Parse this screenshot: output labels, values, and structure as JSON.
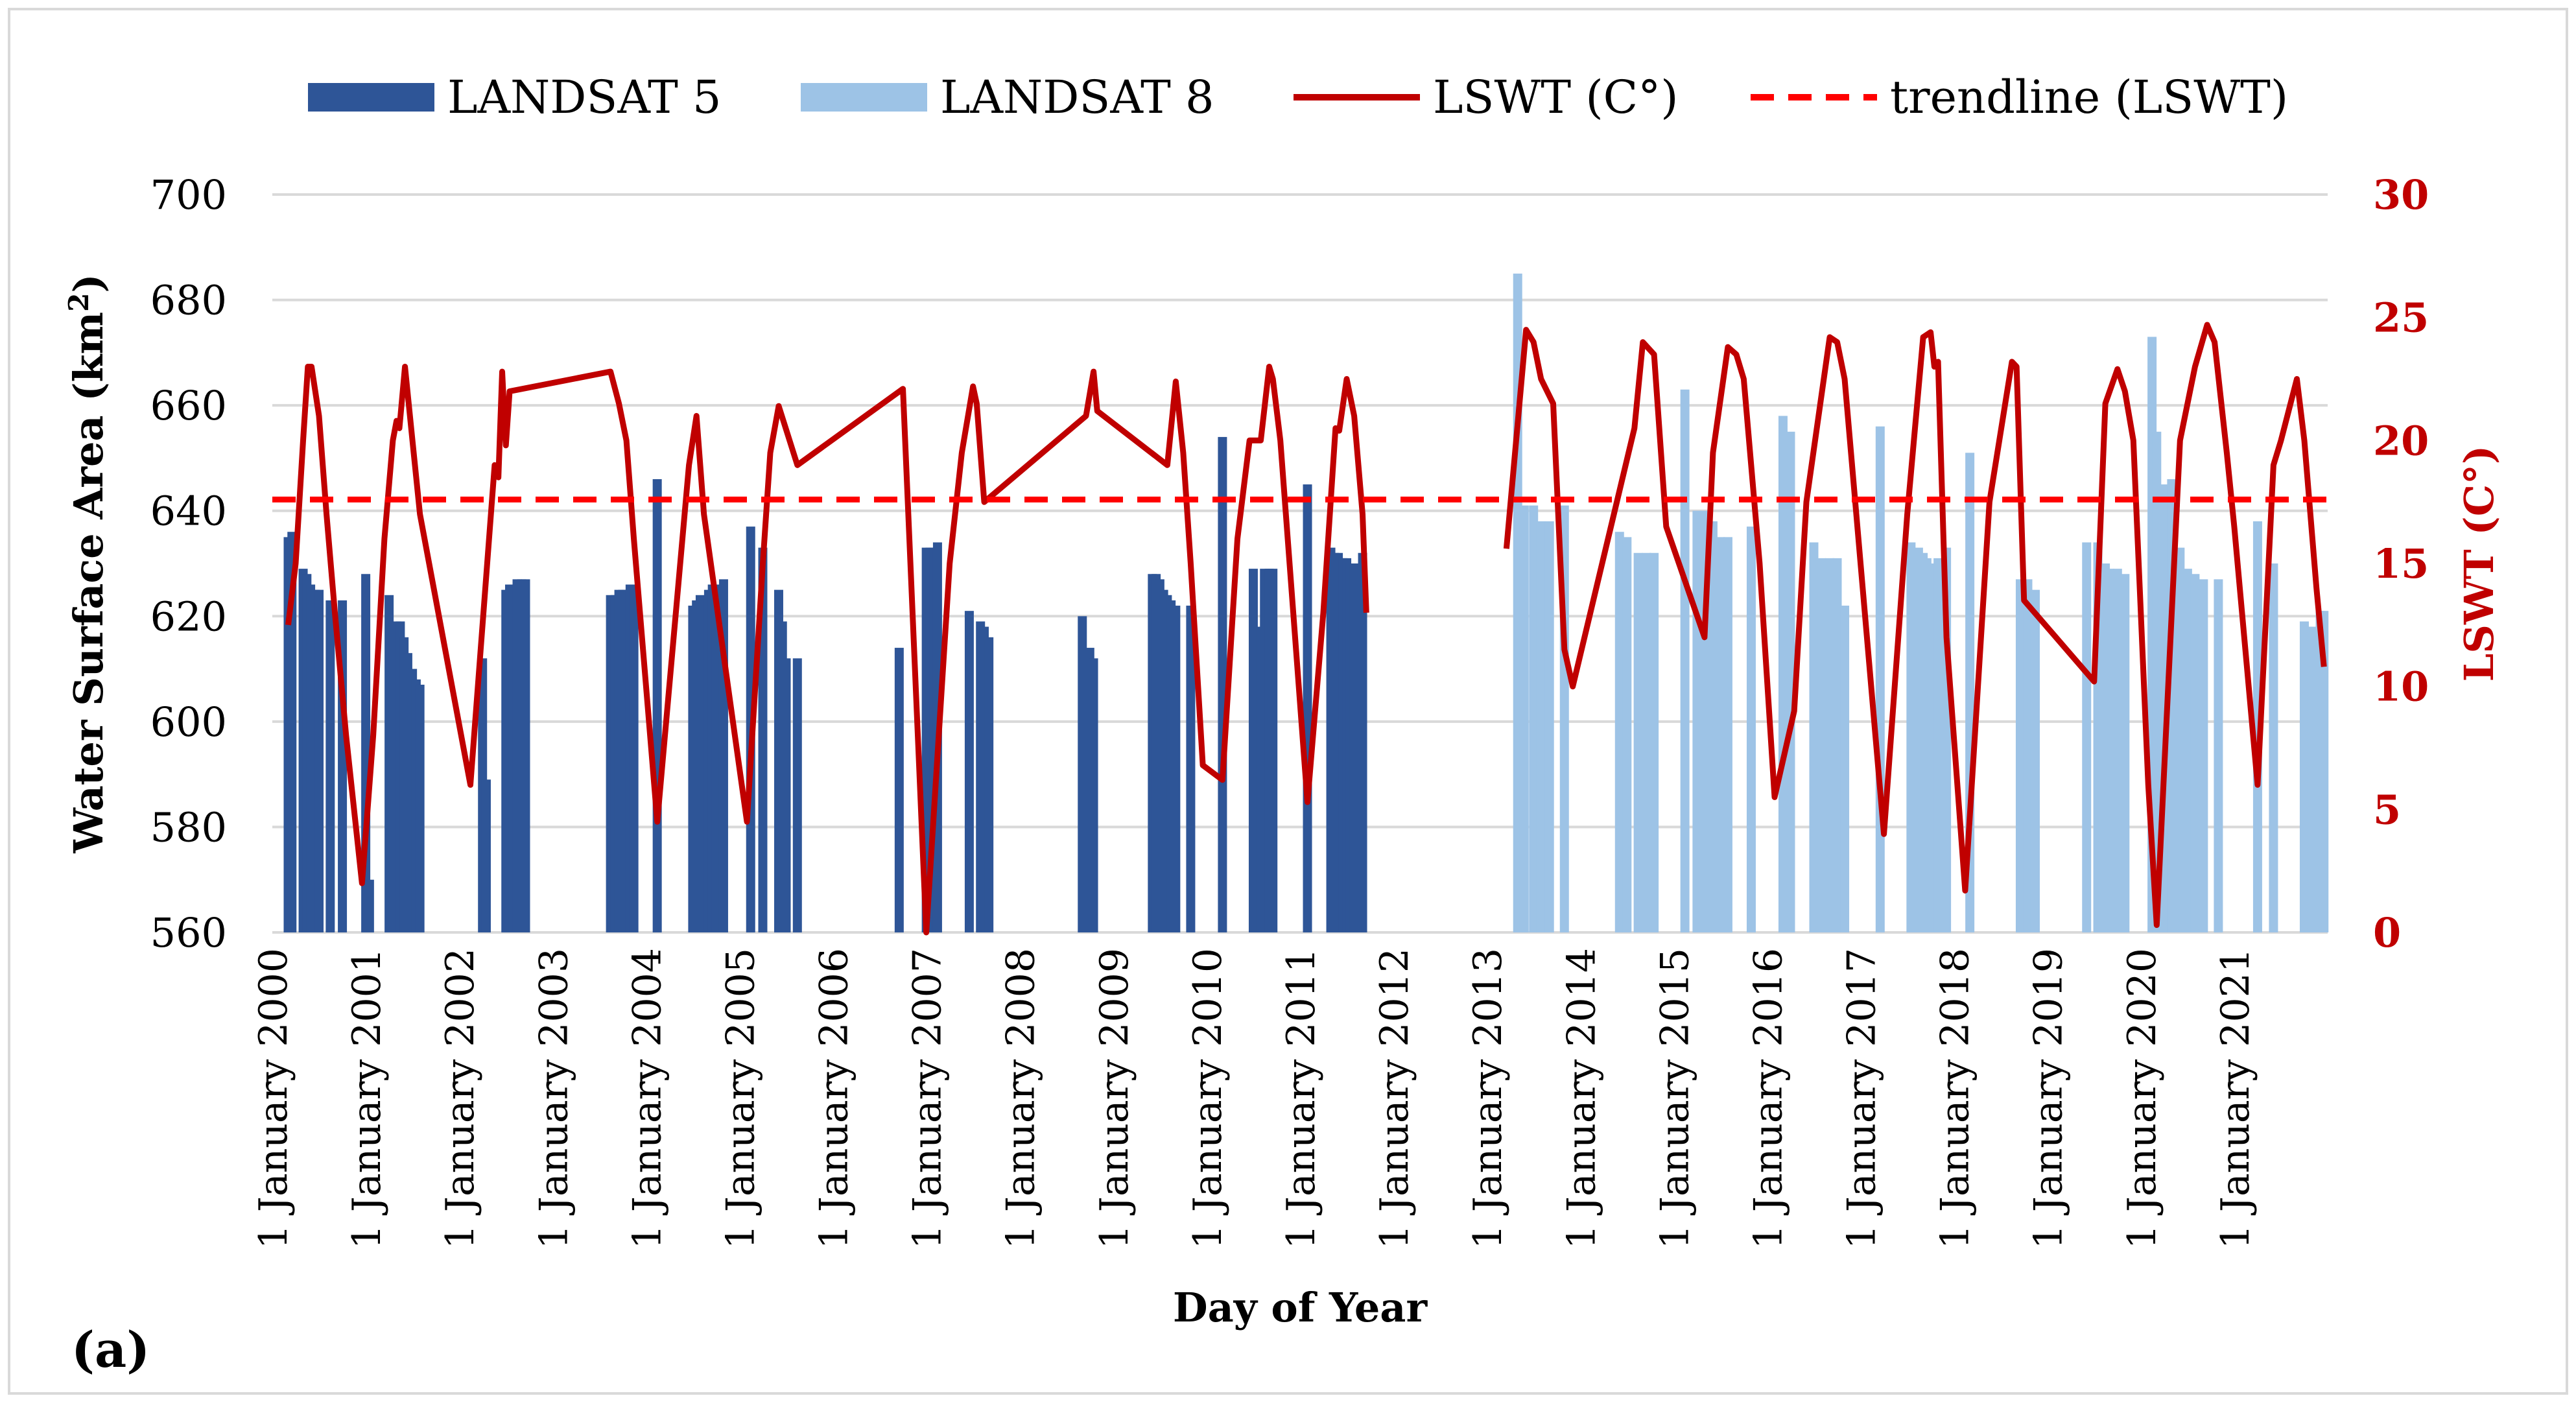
{
  "chart_data": {
    "type": "bar+line",
    "panel_label": "(a)",
    "xlabel": "Day of Year",
    "ylabel_left": "Water Surface Area (km",
    "ylabel_left_sup": "2",
    "ylabel_left_close": ")",
    "ylabel_right": "LSWT (C°)",
    "y_left": {
      "min": 560,
      "max": 700,
      "ticks": [
        560,
        580,
        600,
        620,
        640,
        660,
        680,
        700
      ]
    },
    "y_right": {
      "min": 0,
      "max": 30,
      "ticks": [
        0,
        5,
        10,
        15,
        20,
        25,
        30
      ]
    },
    "x_range": [
      2000.0,
      2022.0
    ],
    "x_ticks": [
      {
        "x": 2000,
        "label": "1 January 2000"
      },
      {
        "x": 2001,
        "label": "1 January 2001"
      },
      {
        "x": 2002,
        "label": "1 January 2002"
      },
      {
        "x": 2003,
        "label": "1 January 2003"
      },
      {
        "x": 2004,
        "label": "1 January 2004"
      },
      {
        "x": 2005,
        "label": "1 January 2005"
      },
      {
        "x": 2006,
        "label": "1 January 2006"
      },
      {
        "x": 2007,
        "label": "1 January 2007"
      },
      {
        "x": 2008,
        "label": "1 January 2008"
      },
      {
        "x": 2009,
        "label": "1 January 2009"
      },
      {
        "x": 2010,
        "label": "1 January 2010"
      },
      {
        "x": 2011,
        "label": "1 January 2011"
      },
      {
        "x": 2012,
        "label": "1 January 2012"
      },
      {
        "x": 2013,
        "label": "1 January 2013"
      },
      {
        "x": 2014,
        "label": "1 January 2014"
      },
      {
        "x": 2015,
        "label": "1 January 2015"
      },
      {
        "x": 2016,
        "label": "1 January 2016"
      },
      {
        "x": 2017,
        "label": "1 January 2017"
      },
      {
        "x": 2018,
        "label": "1 January 2018"
      },
      {
        "x": 2019,
        "label": "1 January 2019"
      },
      {
        "x": 2020,
        "label": "1 January 2020"
      },
      {
        "x": 2021,
        "label": "1 January 2021"
      }
    ],
    "legend": [
      {
        "name": "LANDSAT 5",
        "kind": "bar",
        "color": "#2E5597"
      },
      {
        "name": "LANDSAT 8",
        "kind": "bar",
        "color": "#9DC3E6"
      },
      {
        "name": "LSWT (C°)",
        "kind": "line",
        "color": "#C00000"
      },
      {
        "name": "trendline (LSWT)",
        "kind": "dashed",
        "color": "#FF0000"
      }
    ],
    "series": [
      {
        "name": "LANDSAT 5",
        "type": "bar",
        "color": "#2E5597",
        "points": [
          [
            2000.17,
            635
          ],
          [
            2000.21,
            636
          ],
          [
            2000.33,
            629
          ],
          [
            2000.37,
            628
          ],
          [
            2000.41,
            626
          ],
          [
            2000.46,
            625
          ],
          [
            2000.5,
            625
          ],
          [
            2000.62,
            623
          ],
          [
            2000.75,
            623
          ],
          [
            2001.0,
            628
          ],
          [
            2001.04,
            570
          ],
          [
            2001.25,
            624
          ],
          [
            2001.33,
            619
          ],
          [
            2001.37,
            619
          ],
          [
            2001.41,
            616
          ],
          [
            2001.45,
            613
          ],
          [
            2001.5,
            610
          ],
          [
            2001.54,
            608
          ],
          [
            2001.58,
            607
          ],
          [
            2002.25,
            612
          ],
          [
            2002.29,
            589
          ],
          [
            2002.5,
            625
          ],
          [
            2002.54,
            626
          ],
          [
            2002.58,
            626
          ],
          [
            2002.62,
            627
          ],
          [
            2002.67,
            627
          ],
          [
            2002.71,
            627
          ],
          [
            2003.62,
            624
          ],
          [
            2003.67,
            624
          ],
          [
            2003.71,
            625
          ],
          [
            2003.75,
            625
          ],
          [
            2003.79,
            625
          ],
          [
            2003.83,
            626
          ],
          [
            2003.87,
            626
          ],
          [
            2004.12,
            646
          ],
          [
            2004.5,
            622
          ],
          [
            2004.54,
            623
          ],
          [
            2004.58,
            624
          ],
          [
            2004.67,
            625
          ],
          [
            2004.71,
            626
          ],
          [
            2004.75,
            626
          ],
          [
            2004.83,
            627
          ],
          [
            2005.12,
            637
          ],
          [
            2005.25,
            633
          ],
          [
            2005.42,
            625
          ],
          [
            2005.46,
            619
          ],
          [
            2005.5,
            612
          ],
          [
            2005.62,
            612
          ],
          [
            2006.71,
            614
          ],
          [
            2007.0,
            633
          ],
          [
            2007.04,
            633
          ],
          [
            2007.08,
            633
          ],
          [
            2007.12,
            634
          ],
          [
            2007.46,
            621
          ],
          [
            2007.58,
            619
          ],
          [
            2007.62,
            618
          ],
          [
            2007.67,
            616
          ],
          [
            2008.67,
            620
          ],
          [
            2008.75,
            614
          ],
          [
            2008.79,
            612
          ],
          [
            2009.42,
            628
          ],
          [
            2009.46,
            628
          ],
          [
            2009.5,
            627
          ],
          [
            2009.54,
            625
          ],
          [
            2009.58,
            624
          ],
          [
            2009.62,
            623
          ],
          [
            2009.67,
            622
          ],
          [
            2009.83,
            622
          ],
          [
            2010.17,
            654
          ],
          [
            2010.5,
            629
          ],
          [
            2010.58,
            618
          ],
          [
            2010.62,
            629
          ],
          [
            2010.67,
            629
          ],
          [
            2010.71,
            629
          ],
          [
            2011.08,
            645
          ],
          [
            2011.33,
            633
          ],
          [
            2011.37,
            632
          ],
          [
            2011.41,
            632
          ],
          [
            2011.46,
            631
          ],
          [
            2011.5,
            631
          ],
          [
            2011.54,
            630
          ],
          [
            2011.58,
            630
          ],
          [
            2011.67,
            632
          ]
        ]
      },
      {
        "name": "LANDSAT 8",
        "type": "bar",
        "color": "#9DC3E6",
        "points": [
          [
            2013.33,
            685
          ],
          [
            2013.4,
            641
          ],
          [
            2013.5,
            641
          ],
          [
            2013.58,
            638
          ],
          [
            2013.67,
            638
          ],
          [
            2013.83,
            641
          ],
          [
            2014.42,
            636
          ],
          [
            2014.5,
            635
          ],
          [
            2014.62,
            632
          ],
          [
            2014.71,
            632
          ],
          [
            2014.79,
            632
          ],
          [
            2015.12,
            663
          ],
          [
            2015.25,
            640
          ],
          [
            2015.33,
            640
          ],
          [
            2015.42,
            638
          ],
          [
            2015.5,
            635
          ],
          [
            2015.58,
            635
          ],
          [
            2015.83,
            637
          ],
          [
            2016.17,
            658
          ],
          [
            2016.25,
            655
          ],
          [
            2016.5,
            634
          ],
          [
            2016.58,
            631
          ],
          [
            2016.67,
            631
          ],
          [
            2016.75,
            631
          ],
          [
            2016.83,
            622
          ],
          [
            2017.21,
            656
          ],
          [
            2017.54,
            634
          ],
          [
            2017.62,
            633
          ],
          [
            2017.67,
            632
          ],
          [
            2017.71,
            631
          ],
          [
            2017.75,
            630
          ],
          [
            2017.83,
            631
          ],
          [
            2017.92,
            633
          ],
          [
            2018.17,
            651
          ],
          [
            2018.71,
            627
          ],
          [
            2018.79,
            627
          ],
          [
            2018.87,
            625
          ],
          [
            2019.42,
            634
          ],
          [
            2019.54,
            634
          ],
          [
            2019.62,
            630
          ],
          [
            2019.67,
            629
          ],
          [
            2019.75,
            629
          ],
          [
            2019.83,
            628
          ],
          [
            2020.12,
            673
          ],
          [
            2020.17,
            655
          ],
          [
            2020.25,
            645
          ],
          [
            2020.33,
            646
          ],
          [
            2020.42,
            633
          ],
          [
            2020.5,
            629
          ],
          [
            2020.58,
            628
          ],
          [
            2020.67,
            627
          ],
          [
            2020.83,
            627
          ],
          [
            2021.25,
            638
          ],
          [
            2021.42,
            630
          ],
          [
            2021.75,
            619
          ],
          [
            2021.79,
            618
          ],
          [
            2021.83,
            618
          ],
          [
            2021.92,
            621
          ],
          [
            2021.96,
            621
          ]
        ]
      },
      {
        "name": "LSWT (C°)",
        "type": "line",
        "color": "#C00000",
        "points": [
          [
            2000.17,
            12.5
          ],
          [
            2000.25,
            15
          ],
          [
            2000.33,
            20
          ],
          [
            2000.38,
            23
          ],
          [
            2000.42,
            23
          ],
          [
            2000.5,
            21
          ],
          [
            2000.58,
            17
          ],
          [
            2000.67,
            13
          ],
          [
            2000.79,
            8
          ],
          [
            2000.96,
            2
          ],
          [
            2001.08,
            8
          ],
          [
            2001.2,
            16
          ],
          [
            2001.29,
            20
          ],
          [
            2001.33,
            20.8
          ],
          [
            2001.36,
            20.5
          ],
          [
            2001.42,
            23
          ],
          [
            2001.5,
            20
          ],
          [
            2001.58,
            17
          ],
          [
            2002.12,
            6
          ],
          [
            2002.38,
            19
          ],
          [
            2002.42,
            18.5
          ],
          [
            2002.46,
            22.8
          ],
          [
            2002.5,
            19.8
          ],
          [
            2002.54,
            22
          ],
          [
            2003.62,
            22.8
          ],
          [
            2003.71,
            21.5
          ],
          [
            2003.79,
            20
          ],
          [
            2003.87,
            16
          ],
          [
            2004.12,
            4.5
          ],
          [
            2004.46,
            19
          ],
          [
            2004.54,
            21
          ],
          [
            2004.62,
            17
          ],
          [
            2005.08,
            4.5
          ],
          [
            2005.25,
            15
          ],
          [
            2005.33,
            19.5
          ],
          [
            2005.42,
            21.4
          ],
          [
            2005.62,
            19
          ],
          [
            2006.75,
            22.1
          ],
          [
            2007.0,
            0
          ],
          [
            2007.25,
            15
          ],
          [
            2007.38,
            19.5
          ],
          [
            2007.5,
            22.2
          ],
          [
            2007.54,
            21.5
          ],
          [
            2007.62,
            17.5
          ],
          [
            2008.71,
            21
          ],
          [
            2008.79,
            22.8
          ],
          [
            2008.83,
            21.2
          ],
          [
            2009.58,
            19
          ],
          [
            2009.67,
            22.4
          ],
          [
            2009.75,
            19.5
          ],
          [
            2009.83,
            15
          ],
          [
            2009.96,
            6.8
          ],
          [
            2010.17,
            6.2
          ],
          [
            2010.33,
            16
          ],
          [
            2010.46,
            20
          ],
          [
            2010.58,
            20
          ],
          [
            2010.67,
            23
          ],
          [
            2010.71,
            22.5
          ],
          [
            2010.79,
            20
          ],
          [
            2011.08,
            5.3
          ],
          [
            2011.25,
            13
          ],
          [
            2011.38,
            20.5
          ],
          [
            2011.42,
            20.4
          ],
          [
            2011.5,
            22.5
          ],
          [
            2011.58,
            21
          ],
          [
            2011.67,
            17
          ],
          [
            2011.71,
            13
          ],
          [
            2013.21,
            15.6
          ],
          [
            2013.42,
            24.5
          ],
          [
            2013.5,
            24
          ],
          [
            2013.58,
            22.5
          ],
          [
            2013.71,
            21.5
          ],
          [
            2013.83,
            11.5
          ],
          [
            2013.92,
            10
          ],
          [
            2014.58,
            20.5
          ],
          [
            2014.67,
            24
          ],
          [
            2014.79,
            23.5
          ],
          [
            2014.92,
            16.5
          ],
          [
            2015.33,
            12
          ],
          [
            2015.42,
            19.5
          ],
          [
            2015.58,
            23.8
          ],
          [
            2015.67,
            23.5
          ],
          [
            2015.75,
            22.5
          ],
          [
            2015.92,
            15
          ],
          [
            2016.08,
            5.5
          ],
          [
            2016.29,
            9
          ],
          [
            2016.42,
            17.5
          ],
          [
            2016.67,
            24.2
          ],
          [
            2016.75,
            24
          ],
          [
            2016.83,
            22.5
          ],
          [
            2017.25,
            4
          ],
          [
            2017.5,
            17
          ],
          [
            2017.67,
            24.2
          ],
          [
            2017.75,
            24.4
          ],
          [
            2017.79,
            23
          ],
          [
            2017.83,
            23.2
          ],
          [
            2017.92,
            12
          ],
          [
            2018.12,
            1.7
          ],
          [
            2018.38,
            17.5
          ],
          [
            2018.62,
            23.2
          ],
          [
            2018.67,
            23
          ],
          [
            2018.75,
            13.5
          ],
          [
            2019.5,
            10.2
          ],
          [
            2019.62,
            21.5
          ],
          [
            2019.75,
            22.9
          ],
          [
            2019.83,
            22
          ],
          [
            2019.92,
            20
          ],
          [
            2020.08,
            6
          ],
          [
            2020.17,
            0.3
          ],
          [
            2020.42,
            20
          ],
          [
            2020.58,
            23
          ],
          [
            2020.71,
            24.7
          ],
          [
            2020.79,
            24
          ],
          [
            2020.92,
            19.5
          ],
          [
            2021.0,
            16.5
          ],
          [
            2021.25,
            6
          ],
          [
            2021.42,
            19
          ],
          [
            2021.5,
            20
          ],
          [
            2021.67,
            22.5
          ],
          [
            2021.75,
            20
          ],
          [
            2021.88,
            14
          ],
          [
            2021.96,
            10.8
          ]
        ]
      },
      {
        "name": "trendline (LSWT)",
        "type": "line",
        "style": "dashed",
        "color": "#FF0000",
        "points": [
          [
            2000.0,
            17.6
          ],
          [
            2022.0,
            17.6
          ]
        ]
      }
    ]
  }
}
